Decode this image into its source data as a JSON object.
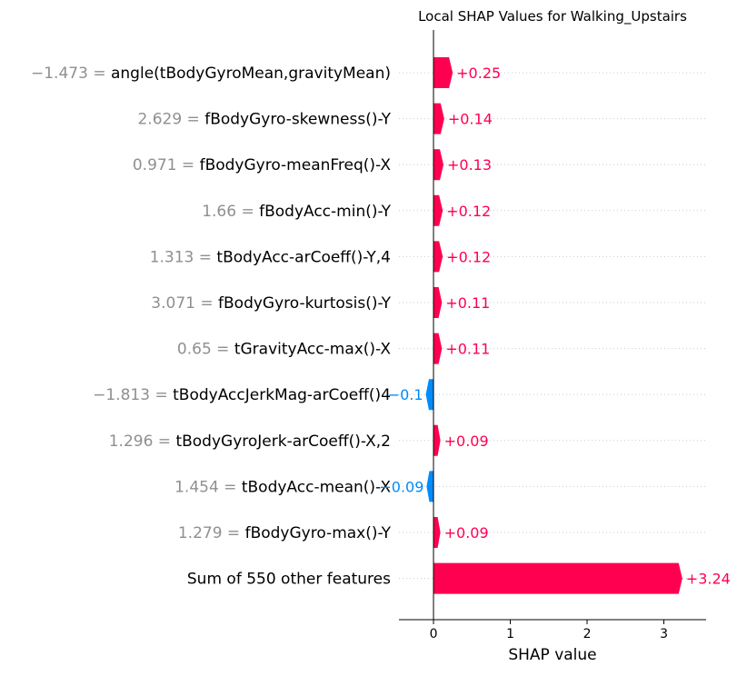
{
  "chart_data": {
    "type": "bar",
    "orientation": "horizontal",
    "title": "Local SHAP Values for Walking_Upstairs",
    "xlabel": "SHAP value",
    "xlim": [
      -0.45,
      3.55
    ],
    "xticks": [
      0,
      1,
      2,
      3
    ],
    "xtick_labels": [
      "0",
      "1",
      "2",
      "3"
    ],
    "grid": false,
    "colors": {
      "positive": "#ff0051",
      "negative": "#008bfb",
      "feature_value": "#8f8f8f",
      "text": "#000000"
    },
    "rows": [
      {
        "feature": "angle(tBodyGyroMean,gravityMean)",
        "feature_value": "−1.473",
        "value": 0.25,
        "label": "+0.25"
      },
      {
        "feature": "fBodyGyro-skewness()-Y",
        "feature_value": "2.629",
        "value": 0.14,
        "label": "+0.14"
      },
      {
        "feature": "fBodyGyro-meanFreq()-X",
        "feature_value": "0.971",
        "value": 0.13,
        "label": "+0.13"
      },
      {
        "feature": "fBodyAcc-min()-Y",
        "feature_value": "1.66",
        "value": 0.12,
        "label": "+0.12"
      },
      {
        "feature": "tBodyAcc-arCoeff()-Y,4",
        "feature_value": "1.313",
        "value": 0.12,
        "label": "+0.12"
      },
      {
        "feature": "fBodyGyro-kurtosis()-Y",
        "feature_value": "3.071",
        "value": 0.11,
        "label": "+0.11"
      },
      {
        "feature": "tGravityAcc-max()-X",
        "feature_value": "0.65",
        "value": 0.11,
        "label": "+0.11"
      },
      {
        "feature": "tBodyAccJerkMag-arCoeff()4",
        "feature_value": "−1.813",
        "value": -0.1,
        "label": "−0.1"
      },
      {
        "feature": "tBodyGyroJerk-arCoeff()-X,2",
        "feature_value": "1.296",
        "value": 0.09,
        "label": "+0.09"
      },
      {
        "feature": "tBodyAcc-mean()-X",
        "feature_value": "1.454",
        "value": -0.09,
        "label": "−0.09"
      },
      {
        "feature": "fBodyGyro-max()-Y",
        "feature_value": "1.279",
        "value": 0.09,
        "label": "+0.09"
      },
      {
        "feature": "Sum of 550 other features",
        "feature_value": "",
        "value": 3.24,
        "label": "+3.24"
      }
    ]
  }
}
